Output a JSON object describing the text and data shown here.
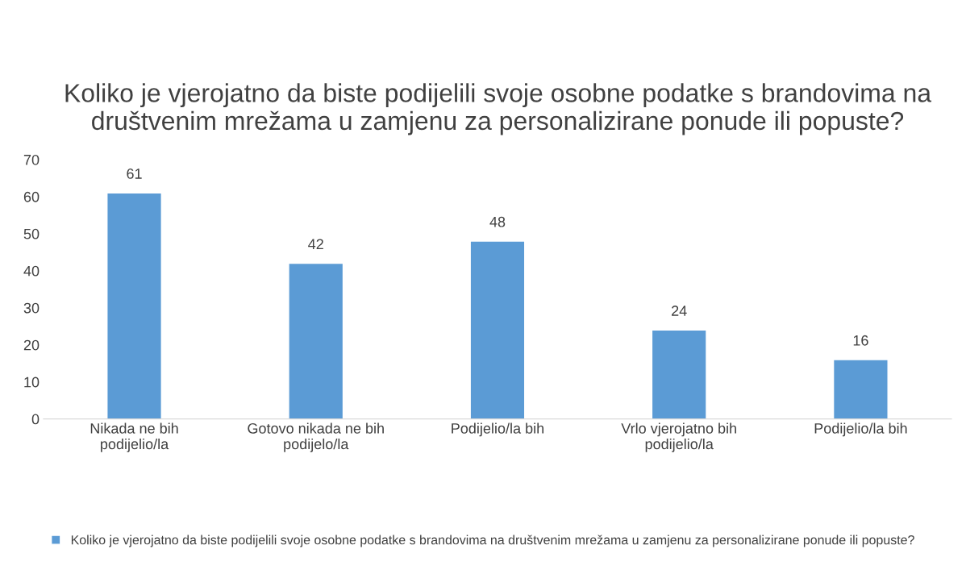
{
  "chart_data": {
    "type": "bar",
    "title": "Koliko je vjerojatno da biste podijelili svoje osobne podatke s brandovima na društvenim mrežama u zamjenu za personalizirane ponude ili popuste?",
    "categories": [
      "Nikada ne bih\npodijelio/la",
      "Gotovo nikada ne bih\npodijelo/la",
      "Podijelio/la bih",
      "Vrlo vjerojatno bih\npodijelio/la",
      "Podijelio/la bih"
    ],
    "series": [
      {
        "name": "Koliko je vjerojatno da biste podijelili svoje osobne podatke s brandovima na društvenim mrežama u zamjenu za personalizirane ponude ili popuste?",
        "color": "#5b9bd5",
        "values": [
          61,
          42,
          48,
          24,
          16
        ]
      }
    ],
    "ylim": [
      0,
      70
    ],
    "yticks": [
      0,
      10,
      20,
      30,
      40,
      50,
      60,
      70
    ],
    "grid": false,
    "data_labels": true,
    "legend": "bottom"
  }
}
